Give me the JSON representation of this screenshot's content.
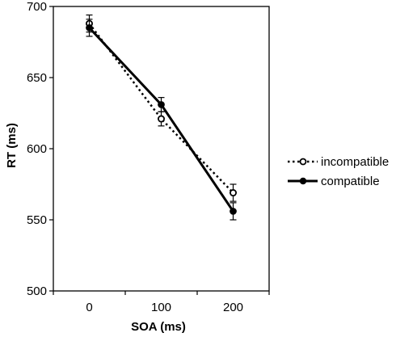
{
  "chart_data": {
    "type": "line",
    "xlabel": "SOA (ms)",
    "ylabel": "RT (ms)",
    "x": [
      0,
      100,
      200
    ],
    "xticks": [
      "0",
      "100",
      "200"
    ],
    "yticks": [
      "500",
      "550",
      "600",
      "650",
      "700"
    ],
    "ylim": [
      500,
      700
    ],
    "grid": false,
    "legend_position": "right",
    "series": [
      {
        "name": "incompatible",
        "style": "dotted",
        "marker": "open-circle",
        "color": "#000000",
        "values": [
          688,
          621,
          569
        ],
        "errors": [
          6,
          5,
          6
        ]
      },
      {
        "name": "compatible",
        "style": "solid",
        "marker": "filled-circle",
        "color": "#000000",
        "values": [
          685,
          631,
          556
        ],
        "errors": [
          6,
          5,
          6
        ]
      }
    ]
  }
}
